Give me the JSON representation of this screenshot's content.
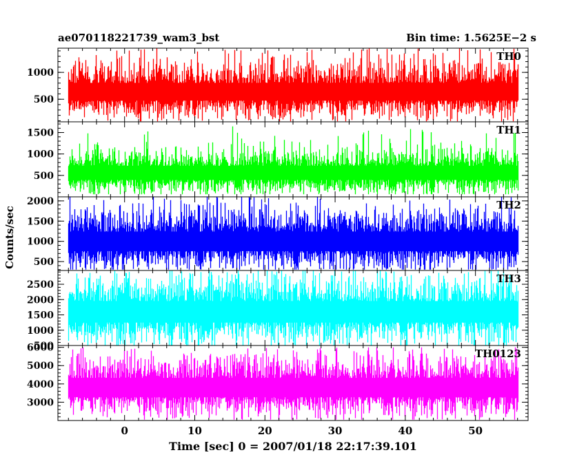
{
  "chart_data": {
    "type": "line",
    "title": "ae070118221739_wam3_bst",
    "subtitle": "Bin time: 1.5625E−2 s",
    "xlabel": "Time [sec] 0 = 2007/01/18 22:17:39.101",
    "ylabel": "Counts/sec",
    "x_range": [
      -8.0,
      56.0
    ],
    "xlim": [
      -9.5,
      57.5
    ],
    "x_ticks": [
      0,
      10,
      20,
      30,
      40,
      50
    ],
    "x_tick_labels": [
      "0",
      "10",
      "20",
      "30",
      "40",
      "50"
    ],
    "grid": false,
    "panels": [
      {
        "name": "TH0",
        "color": "#ff0000",
        "ylim": [
          80,
          1450
        ],
        "yticks": [
          500,
          1000
        ],
        "ytick_labels": [
          "500",
          "1000"
        ],
        "band": {
          "mean": 640,
          "spread": 150,
          "extreme_high": 1450,
          "extreme_low": 90
        }
      },
      {
        "name": "TH1",
        "color": "#00ff00",
        "ylim": [
          0,
          1750
        ],
        "yticks": [
          500,
          1000,
          1500
        ],
        "ytick_labels": [
          "500",
          "1000",
          "1500"
        ],
        "band": {
          "mean": 560,
          "spread": 150,
          "extreme_high": 1650,
          "extreme_low": 60
        }
      },
      {
        "name": "TH2",
        "color": "#0000ff",
        "ylim": [
          280,
          2100
        ],
        "yticks": [
          500,
          1000,
          1500,
          2000
        ],
        "ytick_labels": [
          "500",
          "1000",
          "1500",
          "2000"
        ],
        "band": {
          "mean": 1000,
          "spread": 220,
          "extreme_high": 2100,
          "extreme_low": 300
        }
      },
      {
        "name": "TH3",
        "color": "#00ffff",
        "ylim": [
          500,
          2950
        ],
        "yticks": [
          500,
          1000,
          1500,
          2000,
          2500
        ],
        "ytick_labels": [
          "500",
          "1000",
          "1500",
          "2000",
          "2500"
        ],
        "band": {
          "mean": 1600,
          "spread": 320,
          "extreme_high": 2950,
          "extreme_low": 500
        }
      },
      {
        "name": "TH0123",
        "color": "#ff00ff",
        "ylim": [
          2000,
          6100
        ],
        "yticks": [
          3000,
          4000,
          5000,
          6000
        ],
        "ytick_labels": [
          "3000",
          "4000",
          "5000",
          "6000"
        ],
        "band": {
          "mean": 3800,
          "spread": 480,
          "extreme_high": 6000,
          "extreme_low": 2050
        }
      }
    ]
  }
}
